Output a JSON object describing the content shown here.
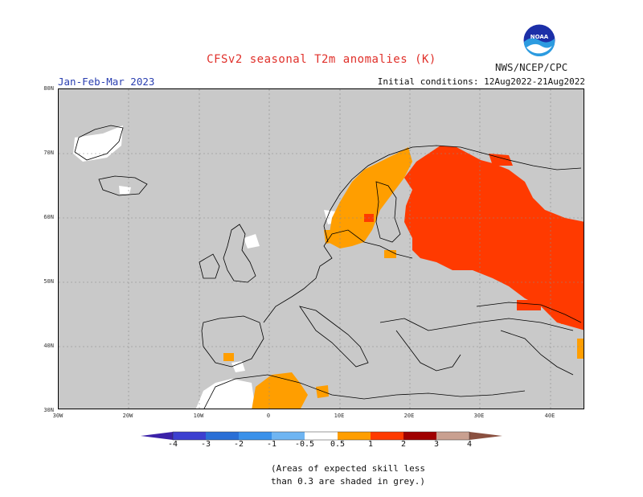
{
  "header": {
    "title": "CFSv2 seasonal T2m anomalies (K)",
    "season": "Jan-Feb-Mar 2023",
    "initial_conditions": "Initial conditions: 12Aug2022-21Aug2022",
    "agency": "NWS/NCEP/CPC",
    "logo_text": "NOAA"
  },
  "axes": {
    "lat_labels": [
      "80N",
      "70N",
      "60N",
      "50N",
      "40N",
      "30N"
    ],
    "lon_labels": [
      "30W",
      "20W",
      "10W",
      "0",
      "10E",
      "20E",
      "30E",
      "40E"
    ]
  },
  "colorbar": {
    "labels": [
      "-4",
      "-3",
      "-2",
      "-1",
      "-0.5",
      "0.5",
      "1",
      "2",
      "3",
      "4"
    ],
    "colors": [
      "#3b21a8",
      "#3c3fd0",
      "#2a6fd6",
      "#3a91ea",
      "#6fb5f2",
      "#ffffff",
      "#ff9e00",
      "#ff3a00",
      "#c01010",
      "#a00000",
      "#c9a090",
      "#8a5040"
    ]
  },
  "colors": {
    "grey_no_skill": "#c9c9c9",
    "anomaly_orange": "#ff9e00",
    "anomaly_red": "#ff3a00"
  },
  "footnote": {
    "line1": "(Areas of expected skill less",
    "line2": "than 0.3 are shaded in grey.)"
  }
}
